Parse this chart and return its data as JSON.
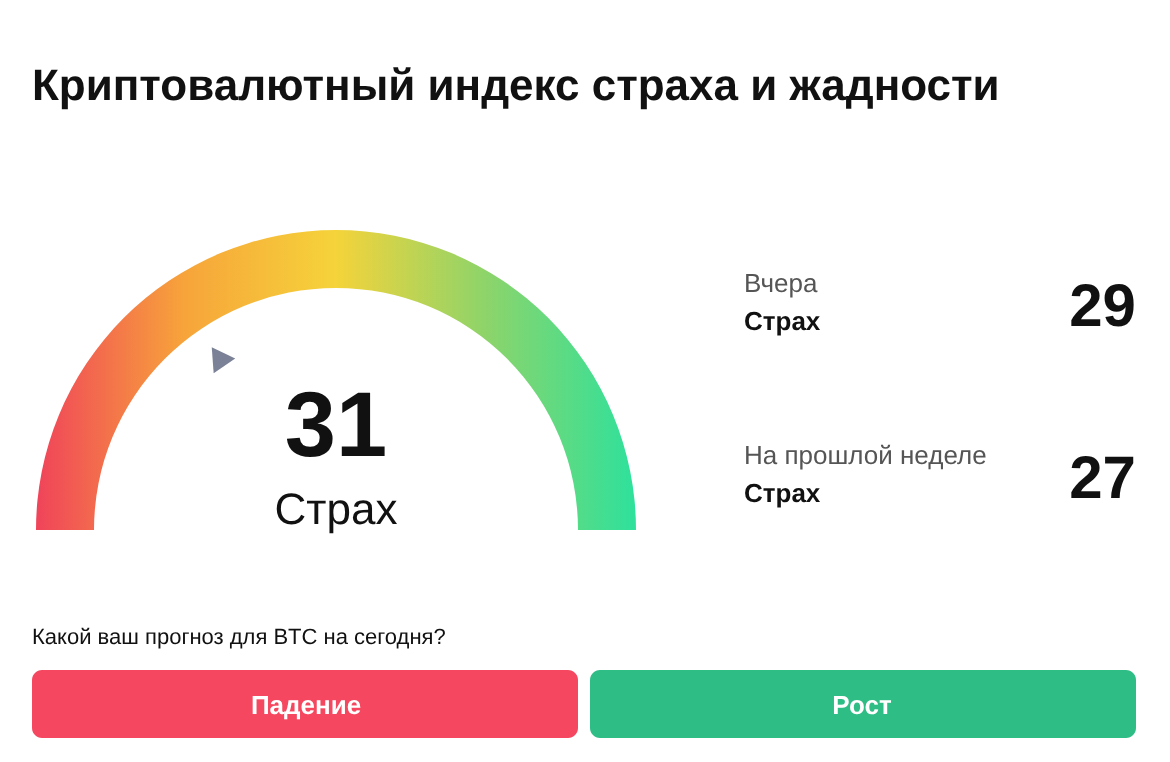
{
  "chart_data": {
    "type": "other",
    "title": "Криптовалютный индекс страха и жадности",
    "categories": [
      null,
      "Вчера",
      "На прошлой неделе"
    ],
    "values": [
      31,
      29,
      27
    ],
    "data_labels": true,
    "annotations": [
      "Страх",
      "Страх",
      "Страх",
      "Какой ваш прогноз для BTC на сегодня?",
      "Падение",
      "Рост"
    ]
  }
}
